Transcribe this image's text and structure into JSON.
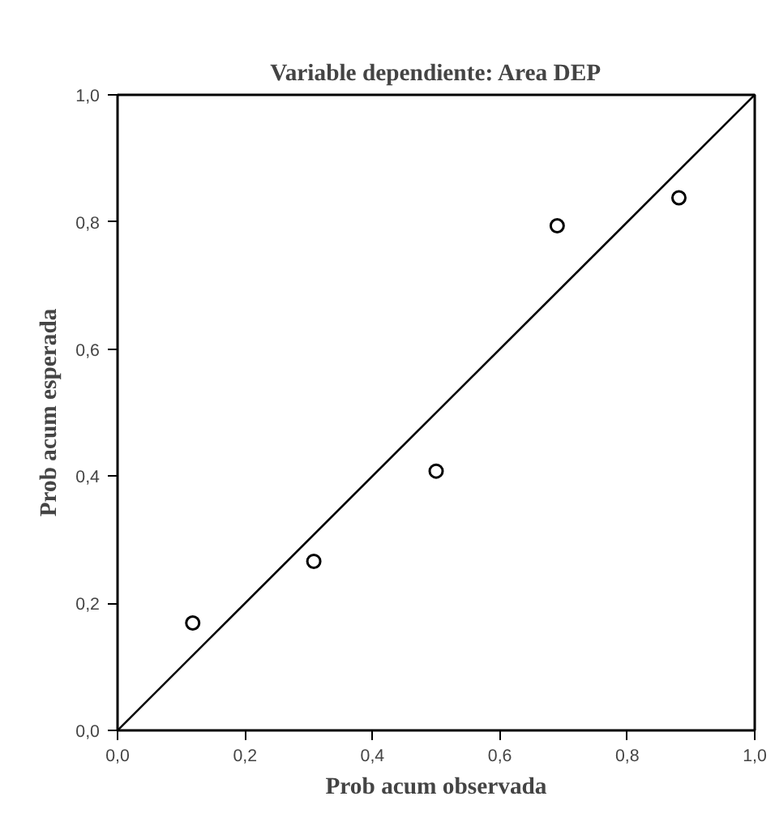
{
  "chart_data": {
    "type": "scatter",
    "title": "Variable dependiente: Area DEP",
    "xlabel": "Prob acum observada",
    "ylabel": "Prob acum esperada",
    "series": [
      {
        "color": "#000000",
        "x": [
          0.118,
          0.308,
          0.5,
          0.69,
          0.881
        ],
        "values": [
          0.169,
          0.266,
          0.408,
          0.794,
          0.838
        ],
        "marker": "circle"
      },
      {
        "type": "line",
        "color": "#000000",
        "x": [
          0,
          1
        ],
        "values": [
          0,
          1
        ],
        "line_style": "solid"
      }
    ],
    "xlim": [
      0,
      1
    ],
    "ylim": [
      0,
      1
    ],
    "xticks": [
      {
        "value": 0,
        "label": "0,0"
      },
      {
        "value": 0.2,
        "label": "0,2"
      },
      {
        "value": 0.4,
        "label": "0,4"
      },
      {
        "value": 0.6,
        "label": "0,6"
      },
      {
        "value": 0.8,
        "label": "0,8"
      },
      {
        "value": 1,
        "label": "1,0"
      }
    ],
    "yticks": [
      {
        "value": 0,
        "label": "0,0"
      },
      {
        "value": 0.2,
        "label": "0,2"
      },
      {
        "value": 0.4,
        "label": "0,4"
      },
      {
        "value": 0.6,
        "label": "0,6"
      },
      {
        "value": 0.8,
        "label": "0,8"
      },
      {
        "value": 1,
        "label": "1,0"
      }
    ],
    "grid": false
  }
}
